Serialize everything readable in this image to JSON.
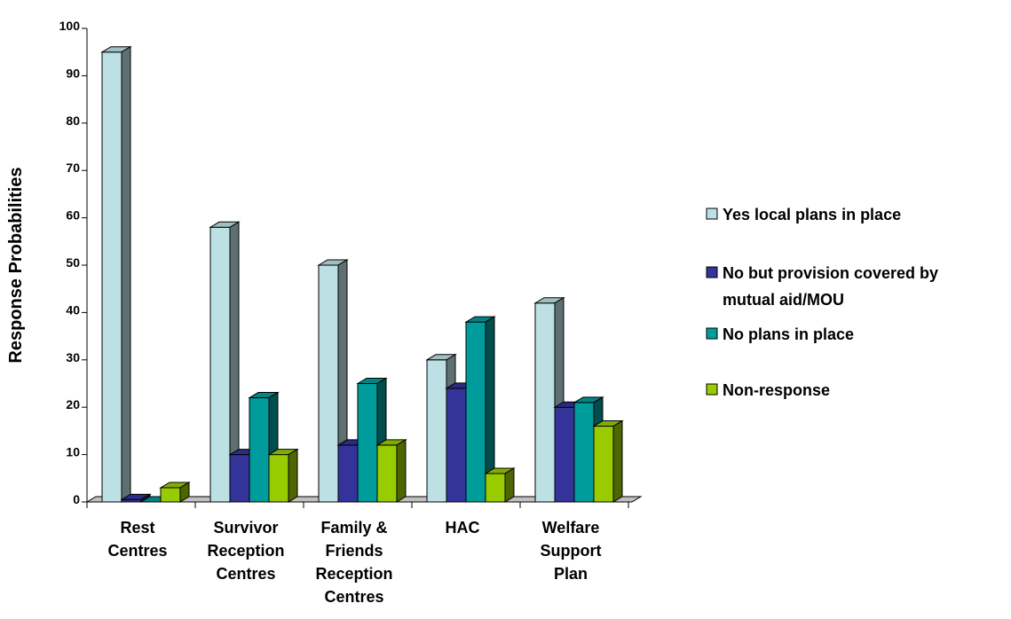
{
  "chart_data": {
    "type": "bar",
    "title": "",
    "xlabel": "",
    "ylabel": "Response Probabilities",
    "ylim": [
      0,
      100
    ],
    "yticks": [
      0,
      10,
      20,
      30,
      40,
      50,
      60,
      70,
      80,
      90,
      100
    ],
    "grid": false,
    "legend_position": "right",
    "categories": [
      [
        "Rest",
        "Centres"
      ],
      [
        "Survivor",
        "Reception",
        "Centres"
      ],
      [
        "Family &",
        "Friends",
        "Reception",
        "Centres"
      ],
      [
        "HAC"
      ],
      [
        "Welfare",
        "Support",
        "Plan"
      ]
    ],
    "series": [
      {
        "name": [
          "Yes local plans in place"
        ],
        "color": "#bde0e4",
        "values": [
          95,
          58,
          50,
          30,
          42
        ]
      },
      {
        "name": [
          "No but provision covered by",
          "mutual aid/MOU"
        ],
        "color": "#333399",
        "values": [
          0.5,
          10,
          12,
          24,
          20
        ]
      },
      {
        "name": [
          "No plans in place"
        ],
        "color": "#009b9b",
        "values": [
          0,
          22,
          25,
          38,
          21
        ]
      },
      {
        "name": [
          "Non-response"
        ],
        "color": "#99cc00",
        "values": [
          3,
          10,
          12,
          6,
          16
        ]
      }
    ]
  }
}
